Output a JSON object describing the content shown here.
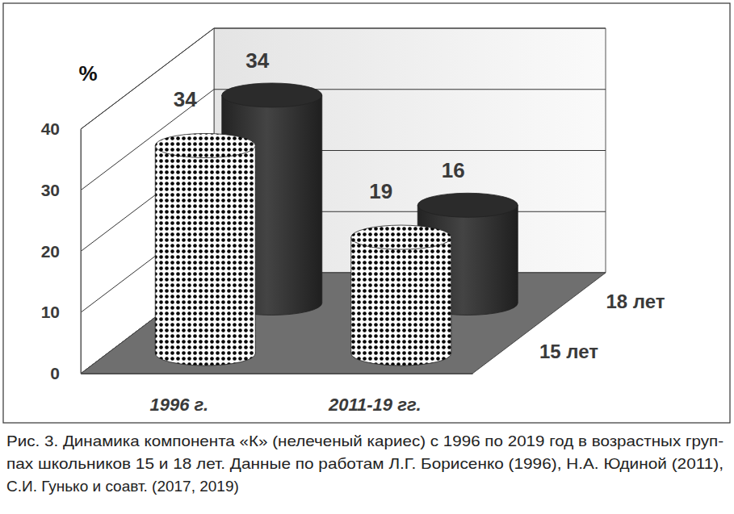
{
  "chart_data": {
    "type": "bar",
    "ylabel": "%",
    "categories": [
      "1996 г.",
      "2011-19 гг."
    ],
    "series": [
      {
        "name": "15 лет",
        "color": "#000000",
        "values": [
          34,
          19
        ]
      },
      {
        "name": "18 лет",
        "color": "#2b2b2b",
        "values": [
          34,
          16
        ]
      }
    ],
    "ylim": [
      0,
      40
    ],
    "yticks": [
      0,
      10,
      20,
      30,
      40
    ],
    "grid": true,
    "data_labels": true,
    "caption": [
      "Рис. 3. Динамика компонента «К» (нелеченый кариес) с 1996 по 2019 год в возрастных груп-",
      "пах школьников 15 и 18 лет. Данные по работам Л.Г. Борисенко (1996), Н.А. Юдиной (2011),",
      "С.И. Гунько и соавт. (2017, 2019)"
    ]
  }
}
